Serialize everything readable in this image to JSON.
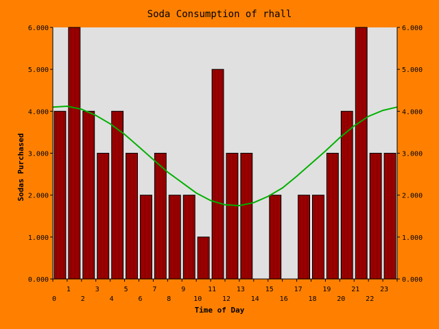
{
  "chart_data": {
    "type": "bar",
    "title": "Soda Consumption of rhall",
    "xlabel": "Time of Day",
    "ylabel": "Sodas Purchased",
    "categories": [
      "0",
      "1",
      "2",
      "3",
      "4",
      "5",
      "6",
      "7",
      "8",
      "9",
      "10",
      "11",
      "12",
      "13",
      "14",
      "15",
      "16",
      "17",
      "18",
      "19",
      "20",
      "21",
      "22",
      "23"
    ],
    "values": [
      4,
      6,
      4,
      3,
      4,
      3,
      2,
      3,
      2,
      2,
      1,
      5,
      3,
      3,
      0,
      2,
      0,
      2,
      2,
      3,
      4,
      6,
      3,
      3
    ],
    "trend_line": [
      {
        "x": 0,
        "y": 4.1
      },
      {
        "x": 1,
        "y": 4.12
      },
      {
        "x": 2,
        "y": 4.05
      },
      {
        "x": 3,
        "y": 3.9
      },
      {
        "x": 4,
        "y": 3.7
      },
      {
        "x": 5,
        "y": 3.45
      },
      {
        "x": 6,
        "y": 3.15
      },
      {
        "x": 7,
        "y": 2.85
      },
      {
        "x": 8,
        "y": 2.55
      },
      {
        "x": 9,
        "y": 2.3
      },
      {
        "x": 10,
        "y": 2.05
      },
      {
        "x": 11,
        "y": 1.87
      },
      {
        "x": 12,
        "y": 1.77
      },
      {
        "x": 13,
        "y": 1.75
      },
      {
        "x": 14,
        "y": 1.82
      },
      {
        "x": 15,
        "y": 1.97
      },
      {
        "x": 16,
        "y": 2.17
      },
      {
        "x": 17,
        "y": 2.45
      },
      {
        "x": 18,
        "y": 2.75
      },
      {
        "x": 19,
        "y": 3.05
      },
      {
        "x": 20,
        "y": 3.37
      },
      {
        "x": 21,
        "y": 3.65
      },
      {
        "x": 22,
        "y": 3.88
      },
      {
        "x": 23,
        "y": 4.02
      },
      {
        "x": 24,
        "y": 4.1
      }
    ],
    "ylim": [
      0,
      6
    ],
    "yticks": [
      "0.000",
      "1.000",
      "2.000",
      "3.000",
      "4.000",
      "5.000",
      "6.000"
    ],
    "xticks_upper": [
      "1",
      "3",
      "5",
      "7",
      "9",
      "11",
      "13",
      "15",
      "17",
      "19",
      "21",
      "23"
    ],
    "xticks_lower": [
      "0",
      "2",
      "4",
      "6",
      "8",
      "10",
      "12",
      "14",
      "16",
      "18",
      "20",
      "22"
    ],
    "grid": false,
    "legend": "none",
    "colors": {
      "background": "#ff8000",
      "plot_area": "#e0e0e0",
      "bar_fill": "#6b0000",
      "bar_stripe": "#d00000",
      "trend": "#00b000"
    }
  }
}
